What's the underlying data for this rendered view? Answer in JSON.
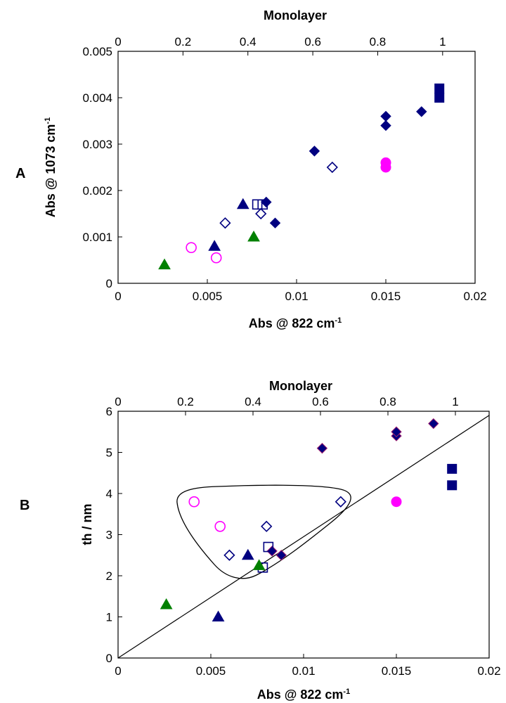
{
  "chart_data": [
    {
      "type": "scatter",
      "panel_label": "A",
      "xlabel": "Abs @ 822 cm",
      "xlabel_sup": "-1",
      "ylabel": "Abs @ 1073 cm",
      "ylabel_sup": "-1",
      "top_label": "Monolayer",
      "xlim": [
        0,
        0.02
      ],
      "ylim": [
        0,
        0.005
      ],
      "top_lim": [
        0,
        1.1
      ],
      "xticks": [
        "0",
        "0.005",
        "0.01",
        "0.015",
        "0.02"
      ],
      "yticks": [
        "0",
        "0.001",
        "0.002",
        "0.003",
        "0.004",
        "0.005"
      ],
      "top_ticks": [
        "0",
        "0.2",
        "0.4",
        "0.6",
        "0.8",
        "1"
      ],
      "grid": false,
      "series": [
        {
          "marker": "diamond-filled",
          "color": "#000080",
          "points": [
            [
              0.0083,
              0.00175
            ],
            [
              0.0088,
              0.0013
            ],
            [
              0.011,
              0.00285
            ],
            [
              0.015,
              0.0034
            ],
            [
              0.015,
              0.0036
            ],
            [
              0.017,
              0.0037
            ]
          ]
        },
        {
          "marker": "diamond-open",
          "color": "#000080",
          "points": [
            [
              0.006,
              0.0013
            ],
            [
              0.008,
              0.0015
            ],
            [
              0.012,
              0.0025
            ]
          ]
        },
        {
          "marker": "square-filled",
          "color": "#000080",
          "points": [
            [
              0.018,
              0.004
            ],
            [
              0.018,
              0.0042
            ]
          ]
        },
        {
          "marker": "square-open",
          "color": "#000080",
          "points": [
            [
              0.0078,
              0.0017
            ],
            [
              0.0081,
              0.0017
            ]
          ]
        },
        {
          "marker": "triangle-filled",
          "color": "#000080",
          "points": [
            [
              0.0054,
              0.0008
            ],
            [
              0.007,
              0.0017
            ]
          ]
        },
        {
          "marker": "triangle-filled",
          "color": "#008000",
          "points": [
            [
              0.0026,
              0.0004
            ],
            [
              0.0076,
              0.001
            ]
          ]
        },
        {
          "marker": "circle-open",
          "color": "#ff00ff",
          "points": [
            [
              0.0041,
              0.00077
            ],
            [
              0.0055,
              0.00055
            ]
          ]
        },
        {
          "marker": "circle-filled",
          "color": "#ff00ff",
          "points": [
            [
              0.015,
              0.0025
            ],
            [
              0.015,
              0.0026
            ]
          ]
        }
      ]
    },
    {
      "type": "scatter",
      "panel_label": "B",
      "xlabel": "Abs @ 822 cm",
      "xlabel_sup": "-1",
      "ylabel": "th / nm",
      "top_label": "Monolayer",
      "xlim": [
        0,
        0.02
      ],
      "ylim": [
        0,
        6
      ],
      "top_lim": [
        0,
        1.1
      ],
      "xticks": [
        "0",
        "0.005",
        "0.01",
        "0.015",
        "0.02"
      ],
      "yticks": [
        "0",
        "1",
        "2",
        "3",
        "4",
        "5",
        "6"
      ],
      "top_ticks": [
        "0",
        "0.2",
        "0.4",
        "0.6",
        "0.8",
        "1"
      ],
      "grid": false,
      "line": [
        [
          0,
          0
        ],
        [
          0.02,
          5.9
        ]
      ],
      "enclosure": true,
      "series": [
        {
          "marker": "diamond-filled-red-edge",
          "color": "#000080",
          "points": [
            [
              0.0083,
              2.6
            ],
            [
              0.0088,
              2.5
            ],
            [
              0.011,
              5.1
            ],
            [
              0.015,
              5.4
            ],
            [
              0.015,
              5.5
            ],
            [
              0.017,
              5.7
            ]
          ]
        },
        {
          "marker": "diamond-open",
          "color": "#000080",
          "points": [
            [
              0.006,
              2.5
            ],
            [
              0.008,
              3.2
            ],
            [
              0.012,
              3.8
            ]
          ]
        },
        {
          "marker": "square-filled",
          "color": "#000080",
          "points": [
            [
              0.018,
              4.2
            ],
            [
              0.018,
              4.6
            ]
          ]
        },
        {
          "marker": "square-open",
          "color": "#000080",
          "points": [
            [
              0.0078,
              2.2
            ],
            [
              0.0081,
              2.7
            ]
          ]
        },
        {
          "marker": "triangle-filled",
          "color": "#000080",
          "points": [
            [
              0.0054,
              1.0
            ],
            [
              0.007,
              2.5
            ]
          ]
        },
        {
          "marker": "triangle-filled",
          "color": "#008000",
          "points": [
            [
              0.0026,
              1.3
            ],
            [
              0.0076,
              2.25
            ]
          ]
        },
        {
          "marker": "circle-open",
          "color": "#ff00ff",
          "points": [
            [
              0.0041,
              3.8
            ],
            [
              0.0055,
              3.2
            ]
          ]
        },
        {
          "marker": "circle-filled",
          "color": "#ff00ff",
          "points": [
            [
              0.015,
              3.8
            ]
          ]
        }
      ]
    }
  ]
}
